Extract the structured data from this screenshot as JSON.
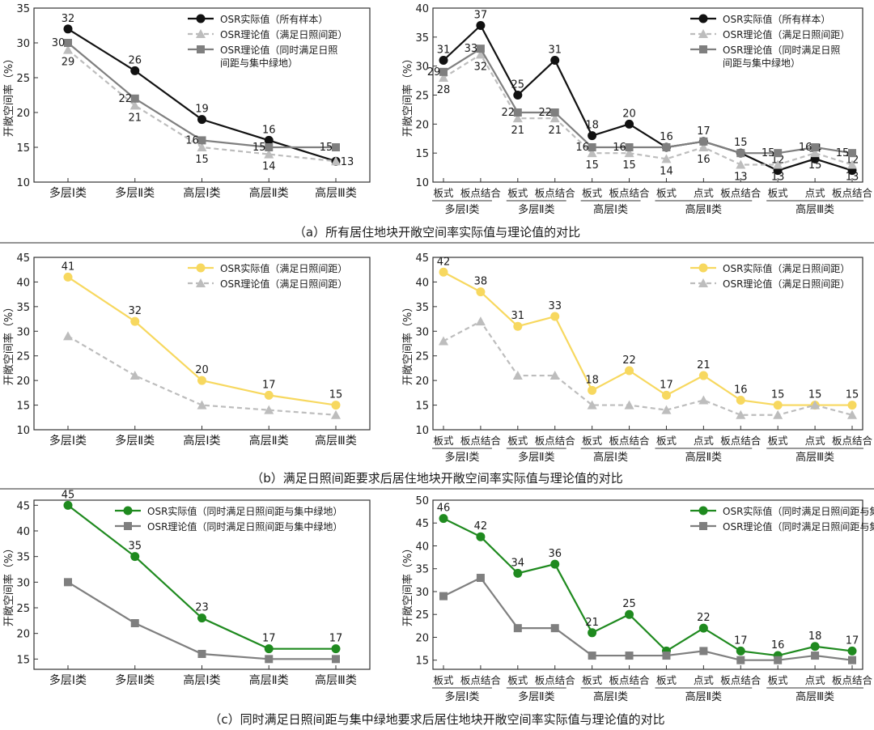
{
  "colors": {
    "black": "#111111",
    "gray_dashed": "#bdbdbd",
    "gray_square": "#7f7f7f",
    "yellow": "#f7d85f",
    "green": "#1f8a1f",
    "frame": "#333333"
  },
  "y_axis_label": "开敞空间率（%）",
  "panels": [
    {
      "caption": "（a）所有居住地块开敞空间率实际值与理论值的对比",
      "charts": [
        {
          "type": "line",
          "categories": [
            "多层Ⅰ类",
            "多层Ⅱ类",
            "高层Ⅰ类",
            "高层Ⅱ类",
            "高层Ⅲ类"
          ],
          "ylim": [
            10,
            35
          ],
          "yticks": [
            10,
            15,
            20,
            25,
            30,
            35
          ],
          "series": [
            {
              "name": "OSR实际值（所有样本）",
              "style": "black",
              "values": [
                32,
                26,
                19,
                16,
                13
              ],
              "labels": [
                "32",
                "26",
                "19",
                "16",
                ""
              ]
            },
            {
              "name": "OSR理论值（满足日照间距）",
              "style": "gray_dashed",
              "values": [
                29,
                21,
                15,
                14,
                13
              ],
              "labels": [
                "29",
                "21",
                "15",
                "14",
                ""
              ]
            },
            {
              "name": "OSR理论值（同时满足日照间距与集中绿地）",
              "style": "gray_square",
              "values": [
                30,
                22,
                16,
                15,
                15
              ],
              "labels": [
                "30",
                "22",
                "16",
                "15",
                "15"
              ]
            }
          ],
          "extra_labels": [
            {
              "text": "13",
              "i": 4,
              "v": 13
            }
          ]
        },
        {
          "type": "line",
          "categories": [
            "板式",
            "板点结合",
            "板式",
            "板点结合",
            "板式",
            "板点结合",
            "板式",
            "点式",
            "板点结合",
            "板式",
            "点式",
            "板点结合"
          ],
          "groups": [
            {
              "name": "多层Ⅰ类",
              "from": 0,
              "to": 1
            },
            {
              "name": "多层Ⅱ类",
              "from": 2,
              "to": 3
            },
            {
              "name": "高层Ⅰ类",
              "from": 4,
              "to": 5
            },
            {
              "name": "高层Ⅱ类",
              "from": 6,
              "to": 8
            },
            {
              "name": "高层Ⅲ类",
              "from": 9,
              "to": 11
            }
          ],
          "ylim": [
            10,
            40
          ],
          "yticks": [
            10,
            15,
            20,
            25,
            30,
            35,
            40
          ],
          "series": [
            {
              "name": "OSR实际值（所有样本）",
              "style": "black",
              "values": [
                31,
                37,
                25,
                31,
                18,
                20,
                16,
                17,
                15,
                12,
                14,
                12
              ],
              "labels": [
                "31",
                "37",
                "25",
                "31",
                "18",
                "20",
                "16",
                "17",
                "15",
                "12",
                "14",
                "12"
              ]
            },
            {
              "name": "OSR理论值（满足日照间距）",
              "style": "gray_dashed",
              "values": [
                28,
                32,
                21,
                21,
                15,
                15,
                14,
                16,
                13,
                13,
                15,
                13
              ],
              "labels": [
                "28",
                "32",
                "21",
                "21",
                "15",
                "15",
                "14",
                "16",
                "13",
                "13",
                "15",
                "13"
              ]
            },
            {
              "name": "OSR理论值（同时满足日照间距与集中绿地）",
              "style": "gray_square",
              "values": [
                29,
                33,
                22,
                22,
                16,
                16,
                16,
                17,
                15,
                15,
                16,
                15
              ],
              "labels": [
                "29",
                "33",
                "22",
                "22",
                "16",
                "16",
                "",
                "",
                "",
                "15",
                "16",
                "15"
              ]
            }
          ]
        }
      ]
    },
    {
      "caption": "（b）满足日照间距要求后居住地块开敞空间率实际值与理论值的对比",
      "charts": [
        {
          "type": "line",
          "categories": [
            "多层Ⅰ类",
            "多层Ⅱ类",
            "高层Ⅰ类",
            "高层Ⅱ类",
            "高层Ⅲ类"
          ],
          "ylim": [
            10,
            45
          ],
          "yticks": [
            10,
            15,
            20,
            25,
            30,
            35,
            40,
            45
          ],
          "series": [
            {
              "name": "OSR实际值（满足日照间距）",
              "style": "yellow",
              "values": [
                41,
                32,
                20,
                17,
                15
              ],
              "labels": [
                "41",
                "32",
                "20",
                "17",
                "15"
              ]
            },
            {
              "name": "OSR理论值（满足日照间距）",
              "style": "gray_dashed",
              "values": [
                29,
                21,
                15,
                14,
                13
              ],
              "labels": [
                "",
                "",
                "",
                "",
                ""
              ]
            }
          ]
        },
        {
          "type": "line",
          "categories": [
            "板式",
            "板点结合",
            "板式",
            "板点结合",
            "板式",
            "板点结合",
            "板式",
            "点式",
            "板点结合",
            "板式",
            "点式",
            "板点结合"
          ],
          "groups": [
            {
              "name": "多层Ⅰ类",
              "from": 0,
              "to": 1
            },
            {
              "name": "多层Ⅱ类",
              "from": 2,
              "to": 3
            },
            {
              "name": "高层Ⅰ类",
              "from": 4,
              "to": 5
            },
            {
              "name": "高层Ⅱ类",
              "from": 6,
              "to": 8
            },
            {
              "name": "高层Ⅲ类",
              "from": 9,
              "to": 11
            }
          ],
          "ylim": [
            10,
            45
          ],
          "yticks": [
            10,
            15,
            20,
            25,
            30,
            35,
            40,
            45
          ],
          "series": [
            {
              "name": "OSR实际值（满足日照间距）",
              "style": "yellow",
              "values": [
                42,
                38,
                31,
                33,
                18,
                22,
                17,
                21,
                16,
                15,
                15,
                15
              ],
              "labels": [
                "42",
                "38",
                "31",
                "33",
                "18",
                "22",
                "17",
                "21",
                "16",
                "15",
                "15",
                "15"
              ]
            },
            {
              "name": "OSR理论值（满足日照间距）",
              "style": "gray_dashed",
              "values": [
                28,
                32,
                21,
                21,
                15,
                15,
                14,
                16,
                13,
                13,
                15,
                13
              ],
              "labels": [
                "",
                "",
                "",
                "",
                "",
                "",
                "",
                "",
                "",
                "",
                "",
                ""
              ]
            }
          ]
        }
      ]
    },
    {
      "caption": "（c）同时满足日照间距与集中绿地要求后居住地块开敞空间率实际值与理论值的对比",
      "charts": [
        {
          "type": "line",
          "categories": [
            "多层Ⅰ类",
            "多层Ⅱ类",
            "高层Ⅰ类",
            "高层Ⅱ类",
            "高层Ⅲ类"
          ],
          "ylim": [
            13,
            46
          ],
          "yticks": [
            15,
            20,
            25,
            30,
            35,
            40,
            45
          ],
          "series": [
            {
              "name": "OSR实际值（同时满足日照间距与集中绿地）",
              "style": "green",
              "values": [
                45,
                35,
                23,
                17,
                17
              ],
              "labels": [
                "45",
                "35",
                "23",
                "17",
                "17"
              ]
            },
            {
              "name": "OSR理论值（同时满足日照间距与集中绿地）",
              "style": "gray_square",
              "values": [
                30,
                22,
                16,
                15,
                15
              ],
              "labels": [
                "",
                "",
                "",
                "",
                ""
              ]
            }
          ]
        },
        {
          "type": "line",
          "categories": [
            "板式",
            "板点结合",
            "板式",
            "板点结合",
            "板式",
            "板点结合",
            "板式",
            "点式",
            "板点结合",
            "板式",
            "点式",
            "板点结合"
          ],
          "groups": [
            {
              "name": "多层Ⅰ类",
              "from": 0,
              "to": 1
            },
            {
              "name": "多层Ⅱ类",
              "from": 2,
              "to": 3
            },
            {
              "name": "高层Ⅰ类",
              "from": 4,
              "to": 5
            },
            {
              "name": "高层Ⅱ类",
              "from": 6,
              "to": 8
            },
            {
              "name": "高层Ⅲ类",
              "from": 9,
              "to": 11
            }
          ],
          "ylim": [
            13,
            50
          ],
          "yticks": [
            15,
            20,
            25,
            30,
            35,
            40,
            45,
            50
          ],
          "series": [
            {
              "name": "OSR实际值（同时满足日照间距与集中绿地）",
              "style": "green",
              "values": [
                46,
                42,
                34,
                36,
                21,
                25,
                17,
                22,
                17,
                16,
                18,
                17
              ],
              "labels": [
                "46",
                "42",
                "34",
                "36",
                "21",
                "25",
                "",
                "22",
                "17",
                "16",
                "18",
                "17"
              ]
            },
            {
              "name": "OSR理论值（同时满足日照间距与集中绿地）",
              "style": "gray_square",
              "values": [
                29,
                33,
                22,
                22,
                16,
                16,
                16,
                17,
                15,
                15,
                16,
                15
              ],
              "labels": [
                "",
                "",
                "",
                "",
                "",
                "",
                "",
                "",
                "",
                "",
                "",
                ""
              ]
            }
          ]
        }
      ]
    }
  ],
  "chart_data": [
    {
      "type": "line",
      "title": "（a）所有居住地块开敞空间率实际值与理论值的对比 — 左",
      "ylabel": "开敞空间率（%）",
      "categories": [
        "多层Ⅰ类",
        "多层Ⅱ类",
        "高层Ⅰ类",
        "高层Ⅱ类",
        "高层Ⅲ类"
      ],
      "ylim": [
        10,
        35
      ],
      "series": [
        {
          "name": "OSR实际值（所有样本）",
          "values": [
            32,
            26,
            19,
            16,
            13
          ]
        },
        {
          "name": "OSR理论值（满足日照间距）",
          "values": [
            29,
            21,
            15,
            14,
            13
          ]
        },
        {
          "name": "OSR理论值（同时满足日照间距与集中绿地）",
          "values": [
            30,
            22,
            16,
            15,
            15
          ]
        }
      ]
    },
    {
      "type": "line",
      "title": "（a）所有居住地块开敞空间率实际值与理论值的对比 — 右",
      "ylabel": "开敞空间率（%）",
      "categories": [
        "板式",
        "板点结合",
        "板式",
        "板点结合",
        "板式",
        "板点结合",
        "板式",
        "点式",
        "板点结合",
        "板式",
        "点式",
        "板点结合"
      ],
      "ylim": [
        10,
        40
      ],
      "series": [
        {
          "name": "OSR实际值（所有样本）",
          "values": [
            31,
            37,
            25,
            31,
            18,
            20,
            16,
            17,
            15,
            12,
            14,
            12
          ]
        },
        {
          "name": "OSR理论值（满足日照间距）",
          "values": [
            28,
            32,
            21,
            21,
            15,
            15,
            14,
            16,
            13,
            13,
            15,
            13
          ]
        },
        {
          "name": "OSR理论值（同时满足日照间距与集中绿地）",
          "values": [
            29,
            33,
            22,
            22,
            16,
            16,
            16,
            17,
            15,
            15,
            16,
            15
          ]
        }
      ]
    },
    {
      "type": "line",
      "title": "（b）满足日照间距要求后居住地块开敞空间率实际值与理论值的对比 — 左",
      "ylabel": "开敞空间率（%）",
      "categories": [
        "多层Ⅰ类",
        "多层Ⅱ类",
        "高层Ⅰ类",
        "高层Ⅱ类",
        "高层Ⅲ类"
      ],
      "ylim": [
        10,
        45
      ],
      "series": [
        {
          "name": "OSR实际值（满足日照间距）",
          "values": [
            41,
            32,
            20,
            17,
            15
          ]
        },
        {
          "name": "OSR理论值（满足日照间距）",
          "values": [
            29,
            21,
            15,
            14,
            13
          ]
        }
      ]
    },
    {
      "type": "line",
      "title": "（b）满足日照间距要求后居住地块开敞空间率实际值与理论值的对比 — 右",
      "ylabel": "开敞空间率（%）",
      "categories": [
        "板式",
        "板点结合",
        "板式",
        "板点结合",
        "板式",
        "板点结合",
        "板式",
        "点式",
        "板点结合",
        "板式",
        "点式",
        "板点结合"
      ],
      "ylim": [
        10,
        45
      ],
      "series": [
        {
          "name": "OSR实际值（满足日照间距）",
          "values": [
            42,
            38,
            31,
            33,
            18,
            22,
            17,
            21,
            16,
            15,
            15,
            15
          ]
        },
        {
          "name": "OSR理论值（满足日照间距）",
          "values": [
            28,
            32,
            21,
            21,
            15,
            15,
            14,
            16,
            13,
            13,
            15,
            13
          ]
        }
      ]
    },
    {
      "type": "line",
      "title": "（c）同时满足日照间距与集中绿地要求后居住地块开敞空间率实际值与理论值的对比 — 左",
      "ylabel": "开敞空间率（%）",
      "categories": [
        "多层Ⅰ类",
        "多层Ⅱ类",
        "高层Ⅰ类",
        "高层Ⅱ类",
        "高层Ⅲ类"
      ],
      "ylim": [
        13,
        46
      ],
      "series": [
        {
          "name": "OSR实际值（同时满足日照间距与集中绿地）",
          "values": [
            45,
            35,
            23,
            17,
            17
          ]
        },
        {
          "name": "OSR理论值（同时满足日照间距与集中绿地）",
          "values": [
            30,
            22,
            16,
            15,
            15
          ]
        }
      ]
    },
    {
      "type": "line",
      "title": "（c）同时满足日照间距与集中绿地要求后居住地块开敞空间率实际值与理论值的对比 — 右",
      "ylabel": "开敞空间率（%）",
      "categories": [
        "板式",
        "板点结合",
        "板式",
        "板点结合",
        "板式",
        "板点结合",
        "板式",
        "点式",
        "板点结合",
        "板式",
        "点式",
        "板点结合"
      ],
      "ylim": [
        13,
        50
      ],
      "series": [
        {
          "name": "OSR实际值（同时满足日照间距与集中绿地）",
          "values": [
            46,
            42,
            34,
            36,
            21,
            25,
            17,
            22,
            17,
            16,
            18,
            17
          ]
        },
        {
          "name": "OSR理论值（同时满足日照间距与集中绿地）",
          "values": [
            29,
            33,
            22,
            22,
            16,
            16,
            16,
            17,
            15,
            15,
            16,
            15
          ]
        }
      ]
    }
  ]
}
